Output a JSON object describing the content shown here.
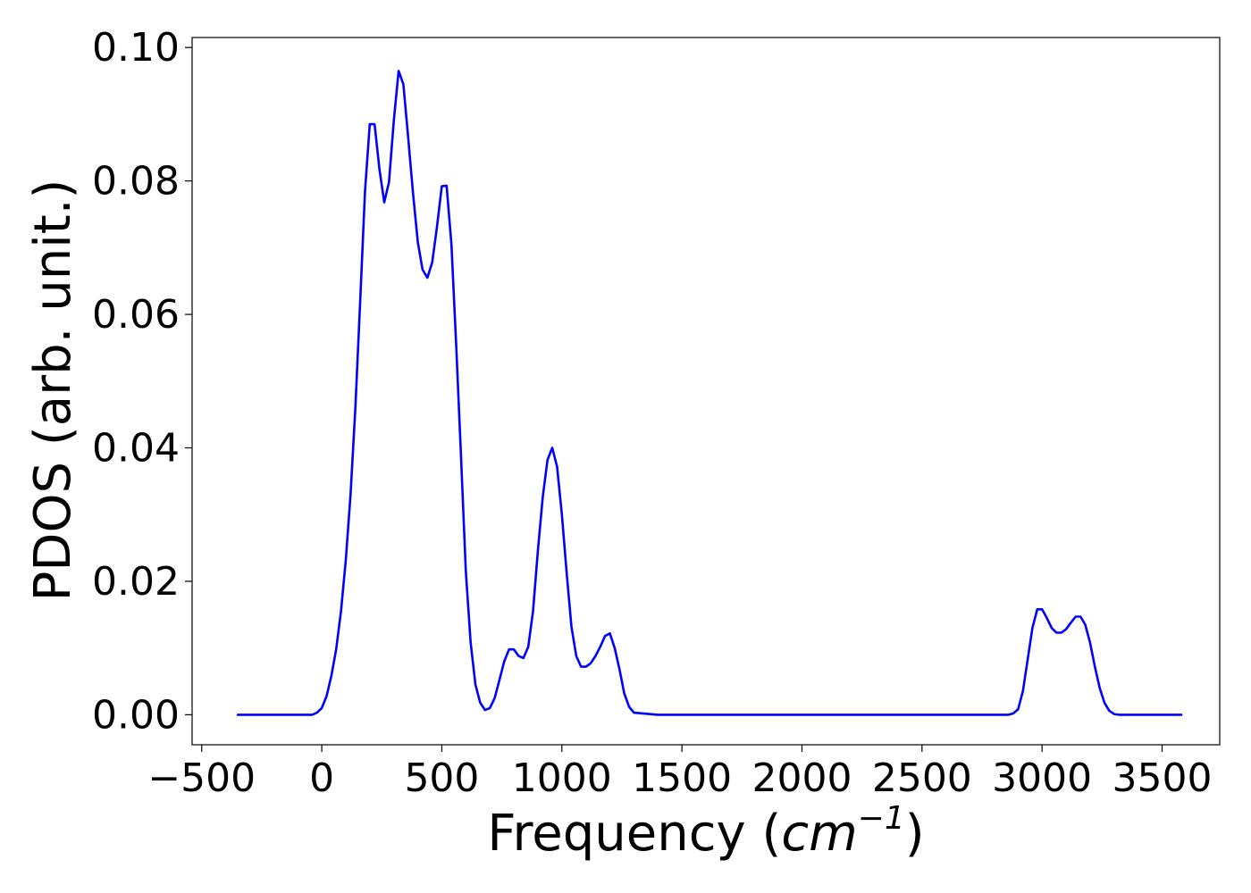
{
  "chart_data": {
    "type": "line",
    "title": "",
    "xlabel_text": "Frequency (",
    "xlabel_unit": "cm",
    "xlabel_exp": "−1",
    "xlabel_close": ")",
    "ylabel": "PDOS (arb. unit.)",
    "xlim": [
      -540,
      3740
    ],
    "ylim": [
      -0.0045,
      0.1015
    ],
    "grid": false,
    "legend": "none",
    "x_ticks": [
      -500,
      0,
      500,
      1000,
      1500,
      2000,
      2500,
      3000,
      3500
    ],
    "x_tick_labels": [
      "−500",
      "0",
      "500",
      "1000",
      "1500",
      "2000",
      "2500",
      "3000",
      "3500"
    ],
    "y_ticks": [
      0.0,
      0.02,
      0.04,
      0.06,
      0.08,
      0.1
    ],
    "y_tick_labels": [
      "0.00",
      "0.02",
      "0.04",
      "0.06",
      "0.08",
      "0.10"
    ],
    "colors": {
      "line": "#0000ff",
      "axes": "#000000"
    },
    "series": [
      {
        "x": [
          -350,
          -200,
          -100,
          -40,
          -20,
          0,
          20,
          40,
          60,
          80,
          100,
          120,
          140,
          160,
          180,
          200,
          220,
          240,
          260,
          280,
          300,
          320,
          340,
          360,
          380,
          400,
          420,
          440,
          460,
          480,
          500,
          520,
          540,
          560,
          580,
          600,
          620,
          640,
          660,
          680,
          700,
          720,
          740,
          760,
          780,
          800,
          820,
          840,
          860,
          880,
          900,
          920,
          940,
          960,
          980,
          1000,
          1020,
          1040,
          1060,
          1080,
          1100,
          1120,
          1140,
          1160,
          1180,
          1200,
          1220,
          1240,
          1260,
          1280,
          1300,
          1400,
          2000,
          2500,
          2800,
          2860,
          2880,
          2900,
          2920,
          2940,
          2960,
          2980,
          3000,
          3020,
          3040,
          3060,
          3080,
          3100,
          3120,
          3140,
          3160,
          3180,
          3200,
          3220,
          3240,
          3260,
          3280,
          3300,
          3320,
          3400,
          3580
        ],
        "y": [
          0.0,
          0.0,
          0.0,
          0.0,
          0.0003,
          0.001,
          0.0028,
          0.0058,
          0.0098,
          0.0155,
          0.0232,
          0.033,
          0.046,
          0.062,
          0.0785,
          0.0885,
          0.0885,
          0.0818,
          0.0768,
          0.0798,
          0.089,
          0.0965,
          0.0945,
          0.0865,
          0.0782,
          0.0708,
          0.0667,
          0.0655,
          0.0678,
          0.0732,
          0.0792,
          0.0793,
          0.0705,
          0.0552,
          0.0388,
          0.0215,
          0.0108,
          0.0045,
          0.0018,
          0.0007,
          0.001,
          0.0025,
          0.0052,
          0.008,
          0.0098,
          0.0098,
          0.0088,
          0.0085,
          0.0102,
          0.0155,
          0.0245,
          0.0325,
          0.0382,
          0.04,
          0.0372,
          0.03,
          0.0212,
          0.0132,
          0.0088,
          0.0072,
          0.0072,
          0.0077,
          0.0088,
          0.0102,
          0.0118,
          0.0122,
          0.01,
          0.0068,
          0.0032,
          0.0012,
          0.0003,
          0.0,
          0.0,
          0.0,
          0.0,
          0.0,
          0.0002,
          0.0008,
          0.0035,
          0.0082,
          0.013,
          0.0158,
          0.0158,
          0.0145,
          0.013,
          0.0123,
          0.0123,
          0.0128,
          0.0138,
          0.0147,
          0.0147,
          0.0135,
          0.0108,
          0.0072,
          0.004,
          0.0018,
          0.0006,
          0.0001,
          0.0,
          0.0,
          0.0
        ]
      }
    ]
  }
}
